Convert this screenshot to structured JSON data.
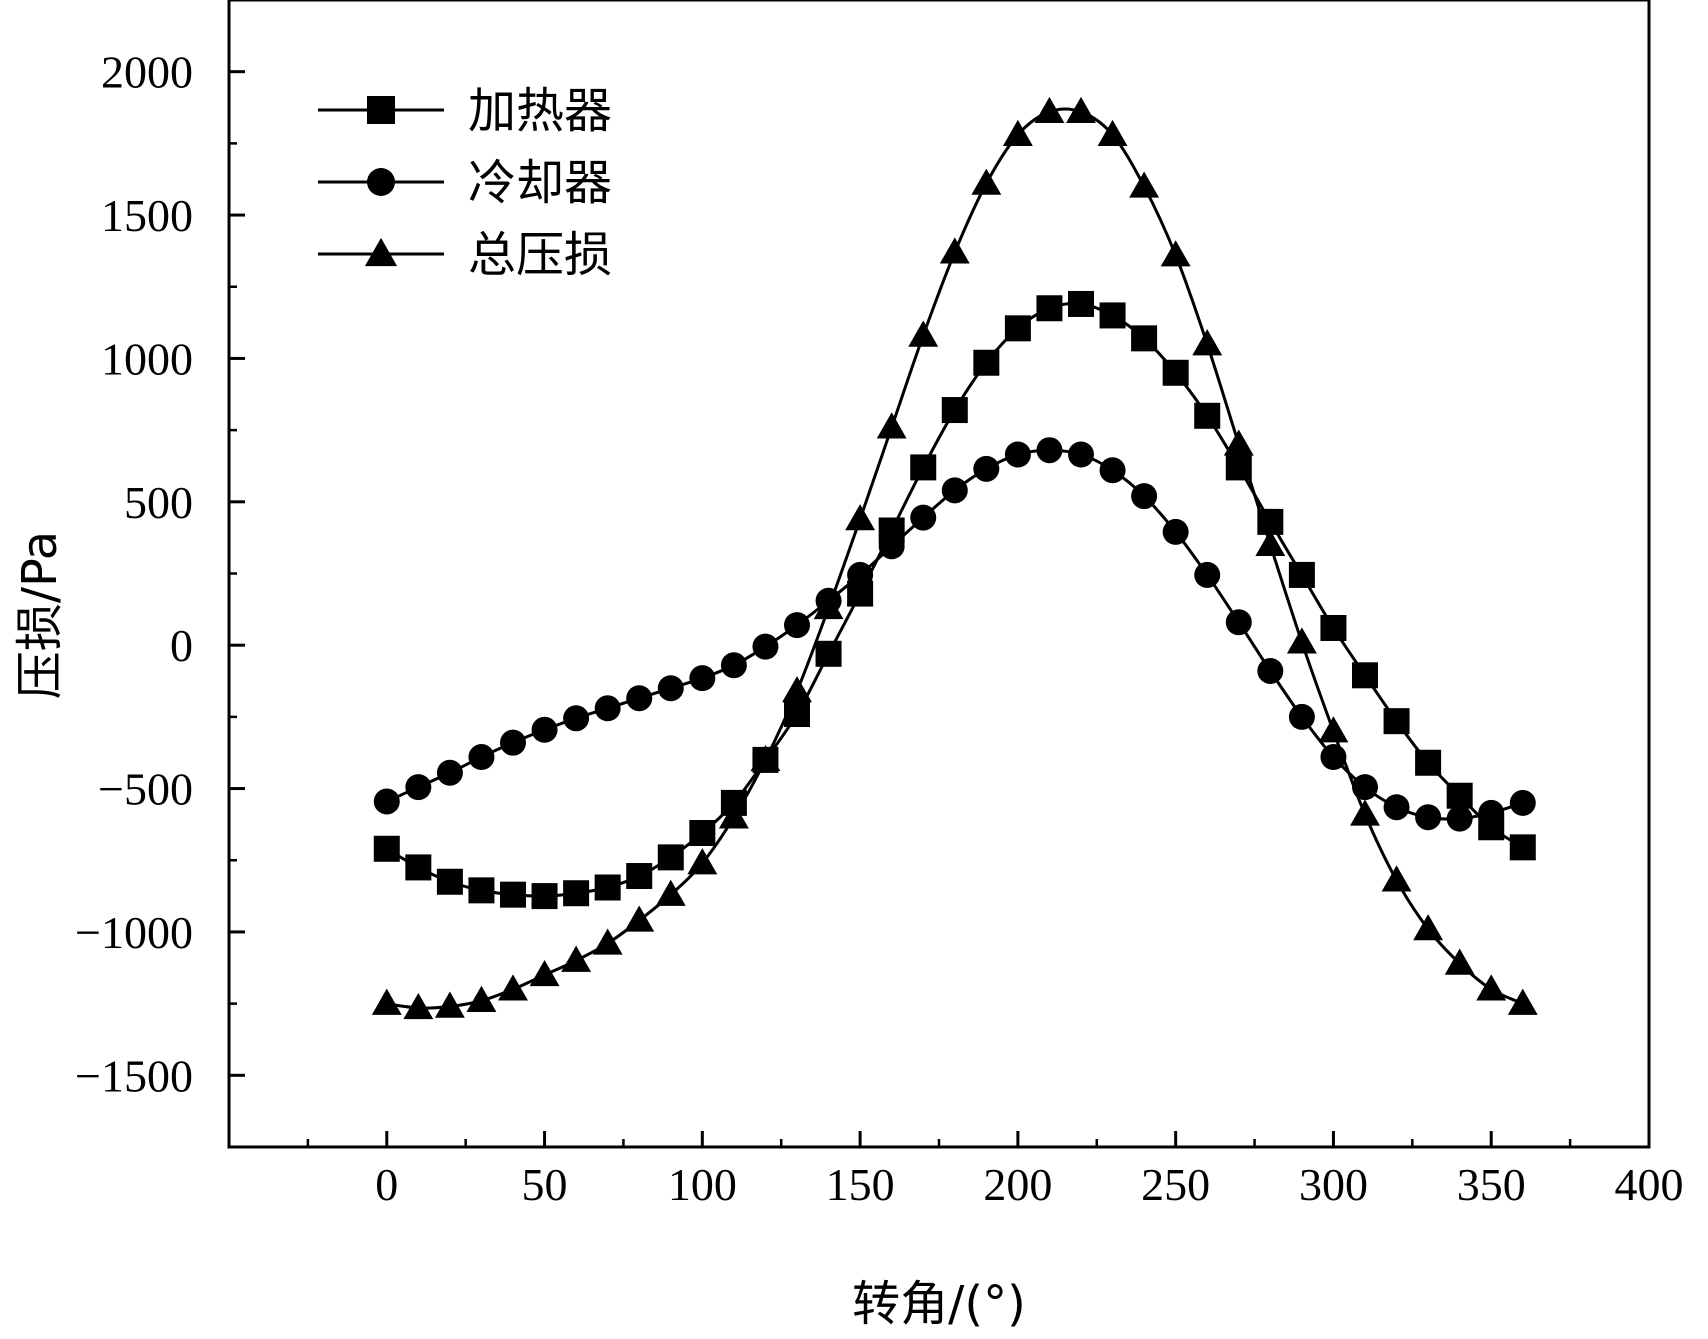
{
  "chart_data": {
    "type": "line",
    "xlabel": "转角/(°)",
    "ylabel": "压损/Pa",
    "xlim": [
      -50,
      400
    ],
    "ylim": [
      -1750,
      2250
    ],
    "xticks": [
      0,
      50,
      100,
      150,
      200,
      250,
      300,
      350,
      400
    ],
    "xtick_labels": [
      "0",
      "50",
      "100",
      "150",
      "200",
      "250",
      "300",
      "350",
      "400"
    ],
    "yticks": [
      -1500,
      -1000,
      -500,
      0,
      500,
      1000,
      1500,
      2000
    ],
    "ytick_labels": [
      "−1500",
      "−1000",
      "−500",
      "0",
      "500",
      "1000",
      "1500",
      "2000"
    ],
    "grid": false,
    "legend_position": "top-left",
    "x": [
      0,
      10,
      20,
      30,
      40,
      50,
      60,
      70,
      80,
      90,
      100,
      110,
      120,
      130,
      140,
      150,
      160,
      170,
      180,
      190,
      200,
      210,
      220,
      230,
      240,
      250,
      260,
      270,
      280,
      290,
      300,
      310,
      320,
      330,
      340,
      350,
      360
    ],
    "series": [
      {
        "name": "加热器",
        "marker": "square",
        "values": [
          -710,
          -775,
          -825,
          -855,
          -870,
          -875,
          -865,
          -845,
          -805,
          -740,
          -655,
          -550,
          -400,
          -240,
          -30,
          180,
          400,
          620,
          820,
          985,
          1105,
          1175,
          1190,
          1150,
          1070,
          950,
          800,
          620,
          430,
          245,
          60,
          -105,
          -265,
          -410,
          -525,
          -635,
          -705
        ]
      },
      {
        "name": "冷却器",
        "marker": "circle",
        "values": [
          -545,
          -495,
          -445,
          -390,
          -340,
          -295,
          -255,
          -220,
          -185,
          -150,
          -115,
          -70,
          -5,
          70,
          155,
          245,
          345,
          445,
          540,
          615,
          665,
          680,
          665,
          610,
          520,
          395,
          245,
          80,
          -90,
          -250,
          -390,
          -495,
          -565,
          -600,
          -605,
          -585,
          -550
        ]
      },
      {
        "name": "总压损",
        "marker": "triangle",
        "values": [
          -1250,
          -1265,
          -1260,
          -1240,
          -1200,
          -1150,
          -1100,
          -1040,
          -960,
          -870,
          -760,
          -600,
          -400,
          -160,
          130,
          440,
          760,
          1080,
          1370,
          1610,
          1780,
          1860,
          1860,
          1780,
          1600,
          1360,
          1050,
          700,
          350,
          10,
          -300,
          -590,
          -820,
          -990,
          -1110,
          -1200,
          -1250
        ]
      }
    ]
  }
}
